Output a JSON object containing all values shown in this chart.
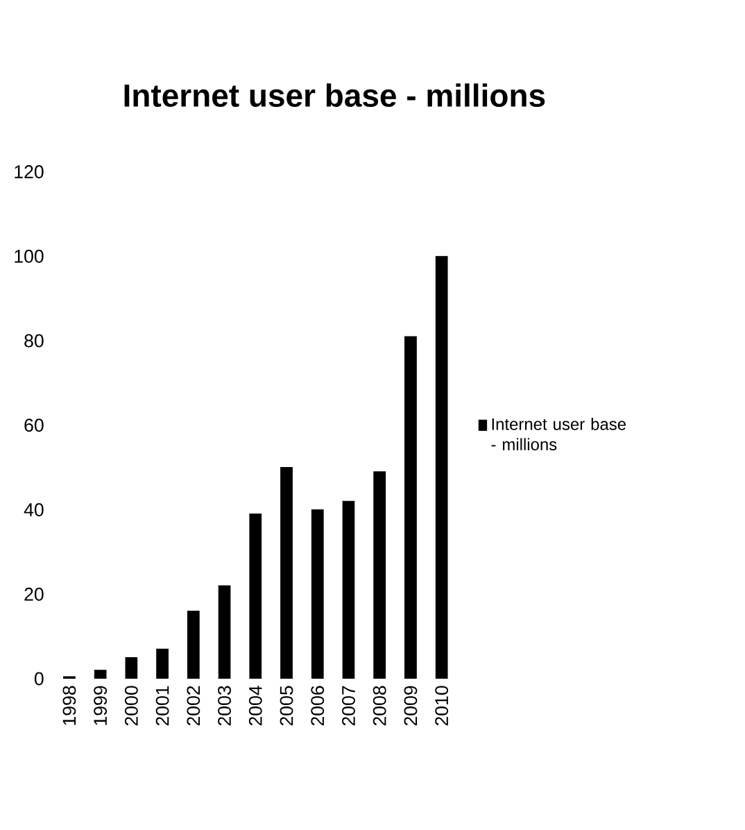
{
  "chart_data": {
    "type": "bar",
    "title": "Internet user base - millions",
    "categories": [
      "1998",
      "1999",
      "2000",
      "2001",
      "2002",
      "2003",
      "2004",
      "2005",
      "2006",
      "2007",
      "2008",
      "2009",
      "2010"
    ],
    "series": [
      {
        "name": "Internet user base - millions",
        "color": "#000000",
        "values": [
          0.5,
          2,
          5,
          7,
          16,
          22,
          39,
          50,
          40,
          42,
          49,
          81,
          100
        ]
      }
    ],
    "ylim": [
      0,
      120
    ],
    "yticks": [
      0,
      20,
      40,
      60,
      80,
      100,
      120
    ],
    "grid": false,
    "legend": "right"
  }
}
